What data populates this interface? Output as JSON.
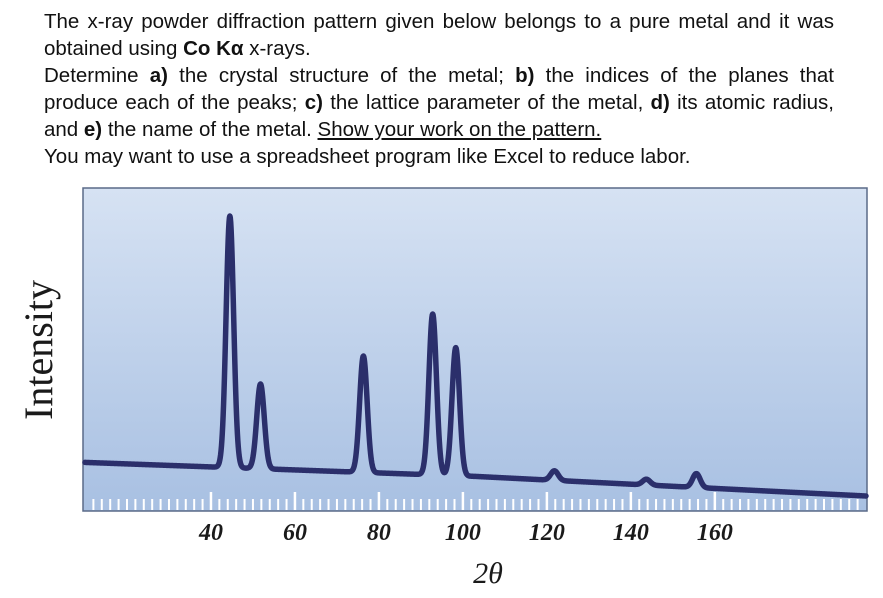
{
  "problem": {
    "intro_1": "The x-ray powder diffraction pattern given below belongs to a pure metal and it was obtained using ",
    "radiation": "Co K",
    "alpha": "α",
    "intro_2": " x-rays.",
    "task_intro": "Determine ",
    "a_label": "a)",
    "a_text": " the crystal structure of the metal; ",
    "b_label": "b)",
    "b_text": " the indices of the planes that produce each of the peaks; ",
    "c_label": "c)",
    "c_text": " the lattice parameter of the metal, ",
    "d_label": "d)",
    "d_text": " its atomic radius, and ",
    "e_label": "e)",
    "e_text": " the name of the metal. ",
    "show_work": "Show your work on the pattern.",
    "excel_note": "You may want to use a spreadsheet program like Excel to reduce labor."
  },
  "chart_data": {
    "type": "line",
    "xlabel": "2θ",
    "ylabel": "Intensity",
    "xlim": [
      10,
      196
    ],
    "ylim": [
      0,
      100
    ],
    "x_ticks": [
      40,
      60,
      80,
      100,
      120,
      140,
      160
    ],
    "x_tick_labels": [
      "40",
      "60",
      "80",
      "100",
      "120",
      "140",
      "160"
    ],
    "grid": false,
    "peaks": [
      {
        "two_theta": 44.5,
        "intensity": 100
      },
      {
        "two_theta": 51.8,
        "intensity": 40
      },
      {
        "two_theta": 76.3,
        "intensity": 50
      },
      {
        "two_theta": 92.8,
        "intensity": 65
      },
      {
        "two_theta": 98.3,
        "intensity": 53
      },
      {
        "two_theta": 121.8,
        "intensity": 9
      },
      {
        "two_theta": 143.7,
        "intensity": 6
      },
      {
        "two_theta": 155.6,
        "intensity": 8
      }
    ],
    "background": {
      "start": 12,
      "mid": 7,
      "end": 0
    },
    "colors": {
      "line": "#2b2f6b",
      "panel_top": "#d6e2f3",
      "panel_bottom": "#a8c0e2",
      "panel_border": "#5a6a88"
    }
  }
}
